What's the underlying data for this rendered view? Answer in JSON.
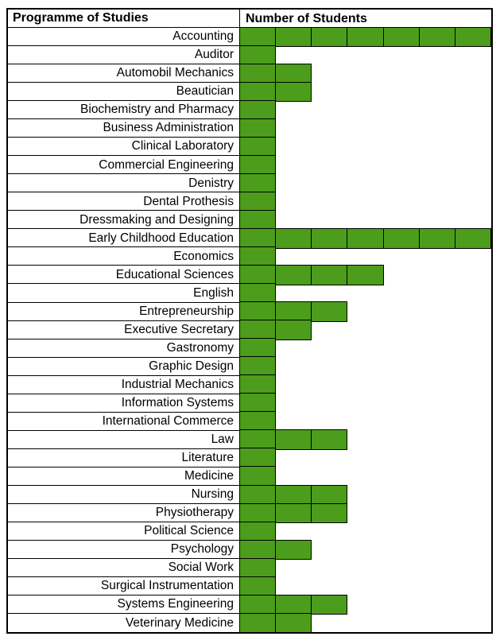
{
  "table": {
    "header": {
      "programme_label": "Programme of Studies",
      "students_label": "Number of Students"
    },
    "bar_color": "#4C9D1C",
    "bar_border_color": "#000000",
    "max_units": 7,
    "rows": [
      {
        "label": "Accounting",
        "units": 7
      },
      {
        "label": "Auditor",
        "units": 1
      },
      {
        "label": "Automobil Mechanics",
        "units": 2
      },
      {
        "label": "Beautician",
        "units": 2
      },
      {
        "label": "Biochemistry and Pharmacy",
        "units": 1
      },
      {
        "label": "Business Administration",
        "units": 1
      },
      {
        "label": "Clinical Laboratory",
        "units": 1
      },
      {
        "label": "Commercial Engineering",
        "units": 1
      },
      {
        "label": "Denistry",
        "units": 1
      },
      {
        "label": "Dental Prothesis",
        "units": 1
      },
      {
        "label": "Dressmaking and Designing",
        "units": 1
      },
      {
        "label": "Early Childhood Education",
        "units": 7
      },
      {
        "label": "Economics",
        "units": 1
      },
      {
        "label": "Educational Sciences",
        "units": 4
      },
      {
        "label": "English",
        "units": 1
      },
      {
        "label": "Entrepreneurship",
        "units": 3
      },
      {
        "label": "Executive Secretary",
        "units": 2
      },
      {
        "label": "Gastronomy",
        "units": 1
      },
      {
        "label": "Graphic Design",
        "units": 1
      },
      {
        "label": "Industrial Mechanics",
        "units": 1
      },
      {
        "label": "Information Systems",
        "units": 1
      },
      {
        "label": "International Commerce",
        "units": 1
      },
      {
        "label": "Law",
        "units": 3
      },
      {
        "label": "Literature",
        "units": 1
      },
      {
        "label": "Medicine",
        "units": 1
      },
      {
        "label": "Nursing",
        "units": 3
      },
      {
        "label": "Physiotherapy",
        "units": 3
      },
      {
        "label": "Political Science",
        "units": 1
      },
      {
        "label": "Psychology",
        "units": 2
      },
      {
        "label": "Social Work",
        "units": 1
      },
      {
        "label": "Surgical Instrumentation",
        "units": 1
      },
      {
        "label": "Systems Engineering",
        "units": 3
      },
      {
        "label": "Veterinary Medicine",
        "units": 2
      }
    ]
  },
  "chart_data": {
    "type": "bar",
    "orientation": "horizontal",
    "title": "",
    "xlabel": "Number of Students",
    "ylabel": "Programme of Studies",
    "xlim": [
      0,
      7
    ],
    "gridlines": false,
    "legend": "none",
    "bar_color": "#4C9D1C",
    "unit_note": "bar lengths measured in table-cell units; no numeric axis shown",
    "categories": [
      "Accounting",
      "Auditor",
      "Automobil Mechanics",
      "Beautician",
      "Biochemistry and Pharmacy",
      "Business Administration",
      "Clinical Laboratory",
      "Commercial Engineering",
      "Denistry",
      "Dental Prothesis",
      "Dressmaking and Designing",
      "Early Childhood Education",
      "Economics",
      "Educational Sciences",
      "English",
      "Entrepreneurship",
      "Executive Secretary",
      "Gastronomy",
      "Graphic Design",
      "Industrial Mechanics",
      "Information Systems",
      "International Commerce",
      "Law",
      "Literature",
      "Medicine",
      "Nursing",
      "Physiotherapy",
      "Political Science",
      "Psychology",
      "Social Work",
      "Surgical Instrumentation",
      "Systems Engineering",
      "Veterinary Medicine"
    ],
    "values": [
      7,
      1,
      2,
      2,
      1,
      1,
      1,
      1,
      1,
      1,
      1,
      7,
      1,
      4,
      1,
      3,
      2,
      1,
      1,
      1,
      1,
      1,
      3,
      1,
      1,
      3,
      3,
      1,
      2,
      1,
      1,
      3,
      2
    ]
  }
}
